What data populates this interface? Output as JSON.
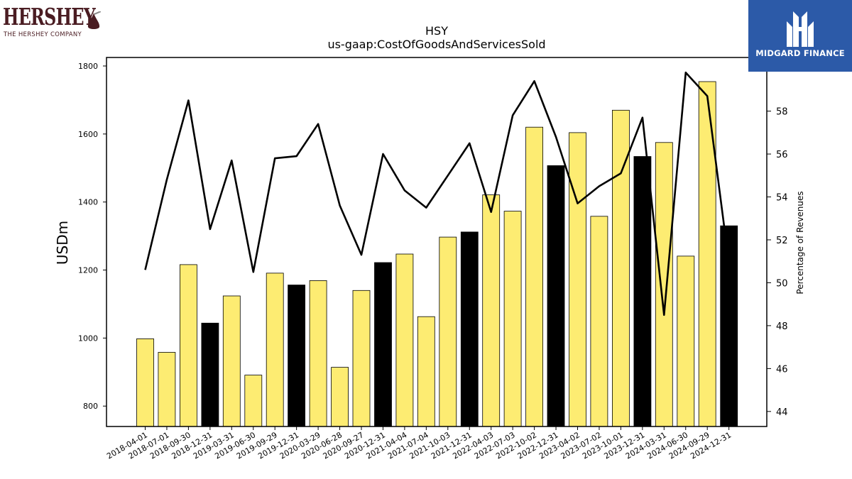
{
  "brands": {
    "left_name": "HERSHEY",
    "left_sub": "THE HERSHEY COMPANY",
    "right_name": "MIDGARD FINANCE"
  },
  "chart_data": {
    "type": "bar",
    "title": "HSY",
    "subtitle": "us-gaap:CostOfGoodsAndServicesSold",
    "ylabel": "USDm",
    "y2label": "Percentage of Revenues",
    "ylim": [
      740,
      1825
    ],
    "y2lim": [
      43.3,
      60.5
    ],
    "yticks": [
      800,
      1000,
      1200,
      1400,
      1600,
      1800
    ],
    "y2ticks": [
      44,
      46,
      48,
      50,
      52,
      54,
      56,
      58
    ],
    "colors": {
      "quarter_bar": "#fdec72",
      "year_end_bar": "#000000",
      "line": "#000000"
    },
    "categories": [
      "2018-04-01",
      "2018-07-01",
      "2018-09-30",
      "2018-12-31",
      "2019-03-31",
      "2019-06-30",
      "2019-09-29",
      "2019-12-31",
      "2020-03-29",
      "2020-06-28",
      "2020-09-27",
      "2020-12-31",
      "2021-04-04",
      "2021-07-04",
      "2021-10-03",
      "2021-12-31",
      "2022-04-03",
      "2022-07-03",
      "2022-10-02",
      "2022-12-31",
      "2023-04-02",
      "2023-07-02",
      "2023-10-01",
      "2023-12-31",
      "2024-03-31",
      "2024-06-30",
      "2024-09-29",
      "2024-12-31"
    ],
    "series": [
      {
        "type": "bar",
        "values": [
          998,
          958,
          1216,
          1044,
          1124,
          891,
          1191,
          1156,
          1169,
          914,
          1140,
          1222,
          1247,
          1063,
          1297,
          1312,
          1421,
          1373,
          1620,
          1507,
          1604,
          1358,
          1670,
          1534,
          1575,
          1241,
          1754,
          1330
        ],
        "year_end": [
          false,
          false,
          false,
          true,
          false,
          false,
          false,
          true,
          false,
          false,
          false,
          true,
          false,
          false,
          false,
          true,
          false,
          false,
          false,
          true,
          false,
          false,
          false,
          true,
          false,
          false,
          false,
          true
        ]
      },
      {
        "type": "line",
        "axis": "right",
        "values": [
          50.6,
          54.8,
          58.5,
          52.5,
          55.7,
          50.5,
          55.8,
          55.9,
          57.4,
          53.6,
          51.3,
          56.0,
          54.3,
          53.5,
          55.0,
          56.5,
          53.3,
          57.8,
          59.4,
          56.8,
          53.7,
          54.5,
          55.1,
          57.7,
          48.5,
          59.8,
          58.7,
          50.9
        ]
      }
    ]
  }
}
